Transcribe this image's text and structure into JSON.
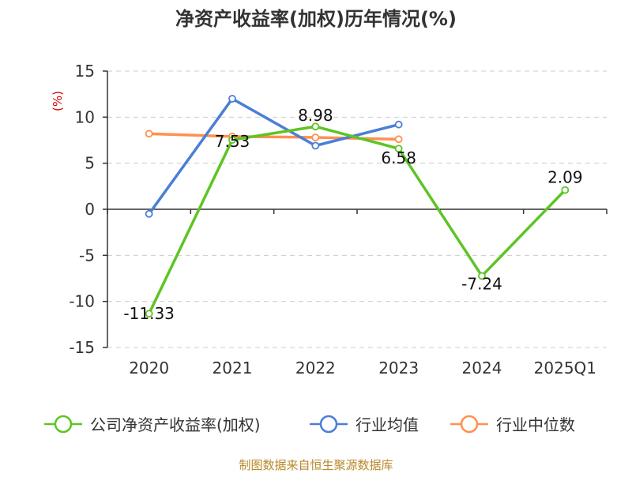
{
  "chart_data": {
    "type": "line",
    "title": "净资产收益率(加权)历年情况(%)",
    "ylabel": "(%)",
    "xlabel": "",
    "categories": [
      "2020",
      "2021",
      "2022",
      "2023",
      "2024",
      "2025Q1"
    ],
    "ylim": [
      -15,
      15
    ],
    "yticks": [
      15,
      10,
      5,
      0,
      -5,
      -10,
      -15
    ],
    "grid": true,
    "legend_position": "bottom",
    "series": [
      {
        "name": "公司净资产收益率(加权)",
        "color": "#5ec424",
        "values": [
          -11.33,
          7.53,
          8.98,
          6.58,
          -7.24,
          2.09
        ],
        "labels": [
          "-11.33",
          "7.53",
          "8.98",
          "6.58",
          "-7.24",
          "2.09"
        ]
      },
      {
        "name": "行业均值",
        "color": "#4a7fd6",
        "values": [
          -0.5,
          12.0,
          6.9,
          9.2,
          null,
          null
        ]
      },
      {
        "name": "行业中位数",
        "color": "#ff9050",
        "values": [
          8.2,
          7.9,
          7.8,
          7.6,
          null,
          null
        ]
      }
    ],
    "source": "制图数据来自恒生聚源数据库"
  }
}
